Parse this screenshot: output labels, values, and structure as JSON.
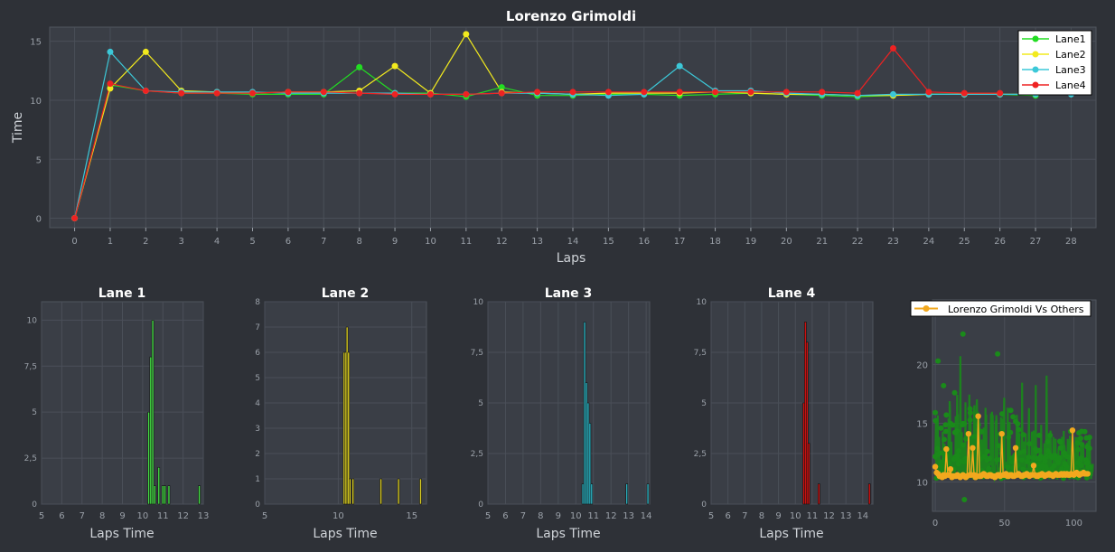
{
  "theme": {
    "background": "#2e3137",
    "plot_background": "#3a3e46",
    "grid": "#4a4f58",
    "axis_text": "#9aa0a8",
    "title_text": "#ffffff",
    "label_text": "#cfd3d8"
  },
  "chart_data": [
    {
      "id": "main",
      "type": "line",
      "title": "Lorenzo Grimoldi",
      "xlabel": "Laps",
      "ylabel": "Time",
      "xlim": [
        -0.7,
        28.7
      ],
      "ylim": [
        -0.8,
        16.2
      ],
      "xticks": [
        0,
        1,
        2,
        3,
        4,
        5,
        6,
        7,
        8,
        9,
        10,
        11,
        12,
        13,
        14,
        15,
        16,
        17,
        18,
        19,
        20,
        21,
        22,
        23,
        24,
        25,
        26,
        27,
        28
      ],
      "yticks": [
        0,
        5,
        10,
        15
      ],
      "grid": true,
      "legend_position": "top-right",
      "x": [
        0,
        1,
        2,
        3,
        4,
        5,
        6,
        7,
        8,
        9,
        10,
        11,
        12,
        13,
        14,
        15,
        16,
        17,
        18,
        19,
        20,
        21,
        22,
        23,
        24,
        25,
        26,
        27,
        28
      ],
      "series": [
        {
          "name": "Lane1",
          "color": "#22dd22",
          "values": [
            0,
            11.3,
            10.8,
            10.6,
            10.6,
            10.5,
            10.5,
            10.5,
            12.8,
            10.6,
            10.6,
            10.3,
            11.1,
            10.4,
            10.4,
            10.5,
            10.5,
            10.4,
            10.5,
            10.6,
            10.5,
            10.4,
            10.3,
            10.4,
            10.5,
            10.5,
            10.5,
            10.4,
            null
          ]
        },
        {
          "name": "Lane2",
          "color": "#f2ea1e",
          "values": [
            0,
            11.0,
            14.1,
            10.8,
            10.7,
            10.6,
            10.7,
            10.7,
            10.8,
            12.9,
            10.6,
            15.6,
            10.7,
            10.6,
            10.5,
            10.6,
            10.6,
            10.6,
            10.7,
            10.6,
            10.5,
            10.5,
            10.4,
            10.4,
            10.5,
            10.5,
            10.5,
            10.5,
            null
          ]
        },
        {
          "name": "Lane3",
          "color": "#3cc8d8",
          "values": [
            0,
            14.1,
            10.8,
            10.7,
            10.7,
            10.7,
            10.6,
            10.6,
            10.6,
            10.6,
            10.5,
            10.5,
            10.6,
            10.6,
            10.5,
            10.4,
            10.5,
            12.9,
            10.8,
            10.8,
            10.6,
            10.5,
            10.4,
            10.5,
            10.5,
            10.5,
            10.5,
            10.5,
            10.5
          ]
        },
        {
          "name": "Lane4",
          "color": "#ee2222",
          "values": [
            0,
            11.4,
            10.8,
            10.6,
            10.6,
            10.6,
            10.7,
            10.7,
            10.6,
            10.5,
            10.5,
            10.5,
            10.6,
            10.7,
            10.7,
            10.7,
            10.7,
            10.7,
            10.7,
            10.7,
            10.7,
            10.7,
            10.6,
            14.4,
            10.7,
            10.6,
            10.6,
            null,
            null
          ]
        }
      ]
    },
    {
      "id": "lane1",
      "type": "bar",
      "title": "Lane 1",
      "xlabel": "Laps Time",
      "color": "#44dd44",
      "xlim": [
        5,
        13
      ],
      "ylim": [
        0,
        11
      ],
      "xticks": [
        5,
        6,
        7,
        8,
        9,
        10,
        11,
        12,
        13
      ],
      "yticks": [
        0,
        2.5,
        5,
        7.5,
        10
      ],
      "ytick_labels": [
        "0",
        "2,5",
        "5",
        "7,5",
        "10"
      ],
      "bars": [
        {
          "x": 10.3,
          "count": 5
        },
        {
          "x": 10.4,
          "count": 8
        },
        {
          "x": 10.5,
          "count": 10
        },
        {
          "x": 10.6,
          "count": 1
        },
        {
          "x": 10.8,
          "count": 2
        },
        {
          "x": 11.0,
          "count": 1
        },
        {
          "x": 11.1,
          "count": 1
        },
        {
          "x": 11.3,
          "count": 1
        },
        {
          "x": 12.8,
          "count": 1
        }
      ]
    },
    {
      "id": "lane2",
      "type": "bar",
      "title": "Lane 2",
      "xlabel": "Laps Time",
      "color": "#d8cc22",
      "xlim": [
        5,
        16
      ],
      "ylim": [
        0,
        8
      ],
      "xticks": [
        5,
        10,
        15
      ],
      "yticks": [
        0,
        1,
        2,
        3,
        4,
        5,
        6,
        7,
        8
      ],
      "ytick_labels": [
        "0",
        "1",
        "2",
        "3",
        "4",
        "5",
        "6",
        "7",
        "8"
      ],
      "bars": [
        {
          "x": 10.4,
          "count": 6
        },
        {
          "x": 10.5,
          "count": 6
        },
        {
          "x": 10.6,
          "count": 7
        },
        {
          "x": 10.7,
          "count": 6
        },
        {
          "x": 10.8,
          "count": 1
        },
        {
          "x": 11.0,
          "count": 1
        },
        {
          "x": 12.9,
          "count": 1
        },
        {
          "x": 14.1,
          "count": 1
        },
        {
          "x": 15.6,
          "count": 1
        }
      ]
    },
    {
      "id": "lane3",
      "type": "bar",
      "title": "Lane 3",
      "xlabel": "Laps Time",
      "color": "#2ab0c0",
      "xlim": [
        5,
        14.2
      ],
      "ylim": [
        0,
        10
      ],
      "xticks": [
        5,
        6,
        7,
        8,
        9,
        10,
        11,
        12,
        13,
        14
      ],
      "yticks": [
        0,
        2.5,
        5,
        7.5,
        10
      ],
      "ytick_labels": [
        "0",
        "2,5",
        "5",
        "7,5",
        "10"
      ],
      "bars": [
        {
          "x": 10.4,
          "count": 1
        },
        {
          "x": 10.5,
          "count": 9
        },
        {
          "x": 10.6,
          "count": 6
        },
        {
          "x": 10.7,
          "count": 5
        },
        {
          "x": 10.8,
          "count": 4
        },
        {
          "x": 10.9,
          "count": 1
        },
        {
          "x": 12.9,
          "count": 1
        },
        {
          "x": 14.1,
          "count": 1
        }
      ]
    },
    {
      "id": "lane4",
      "type": "bar",
      "title": "Lane 4",
      "xlabel": "Laps Time",
      "color": "#cc1111",
      "xlim": [
        5,
        14.6
      ],
      "ylim": [
        0,
        10
      ],
      "xticks": [
        5,
        6,
        7,
        8,
        9,
        10,
        11,
        12,
        13,
        14
      ],
      "yticks": [
        0,
        2.5,
        5,
        7.5,
        10
      ],
      "ytick_labels": [
        "0",
        "2,5",
        "5",
        "7,5",
        "10"
      ],
      "bars": [
        {
          "x": 10.5,
          "count": 5
        },
        {
          "x": 10.6,
          "count": 9
        },
        {
          "x": 10.7,
          "count": 8
        },
        {
          "x": 10.8,
          "count": 3
        },
        {
          "x": 11.4,
          "count": 1
        },
        {
          "x": 14.4,
          "count": 1
        }
      ]
    },
    {
      "id": "compare",
      "type": "scatter",
      "title": "",
      "legend": "Lorenzo Grimoldi Vs Others",
      "legend_position": "top-left",
      "main_color": "#f2a81e",
      "others_color": "#1a8a1a",
      "xlim": [
        -2,
        116
      ],
      "ylim": [
        7.5,
        25.5
      ],
      "xticks": [
        0,
        50,
        100
      ],
      "yticks": [
        10,
        15,
        20
      ],
      "main_points": [
        [
          0,
          11.3
        ],
        [
          1,
          10.8
        ],
        [
          2,
          10.7
        ],
        [
          3,
          10.5
        ],
        [
          4,
          10.5
        ],
        [
          5,
          10.4
        ],
        [
          6,
          10.6
        ],
        [
          7,
          10.5
        ],
        [
          8,
          10.5
        ],
        [
          9,
          10.6
        ],
        [
          10,
          10.6
        ],
        [
          11,
          10.5
        ],
        [
          12,
          10.4
        ],
        [
          13,
          10.5
        ],
        [
          14,
          10.5
        ],
        [
          15,
          10.5
        ],
        [
          16,
          10.6
        ],
        [
          17,
          10.5
        ],
        [
          18,
          10.4
        ],
        [
          19,
          10.5
        ],
        [
          20,
          10.6
        ],
        [
          21,
          10.5
        ],
        [
          22,
          10.4
        ],
        [
          23,
          10.5
        ],
        [
          24,
          10.5
        ],
        [
          25,
          10.6
        ],
        [
          26,
          10.6
        ],
        [
          27,
          10.5
        ],
        [
          28,
          10.6
        ],
        [
          29,
          10.4
        ],
        [
          30,
          10.5
        ],
        [
          31,
          10.6
        ],
        [
          32,
          10.5
        ],
        [
          33,
          10.5
        ],
        [
          34,
          10.6
        ],
        [
          35,
          10.7
        ],
        [
          36,
          10.6
        ],
        [
          37,
          10.5
        ],
        [
          38,
          10.5
        ],
        [
          39,
          10.6
        ],
        [
          40,
          10.6
        ],
        [
          41,
          10.5
        ],
        [
          42,
          10.5
        ],
        [
          43,
          10.4
        ],
        [
          44,
          10.5
        ],
        [
          45,
          10.6
        ],
        [
          46,
          10.6
        ],
        [
          47,
          10.5
        ],
        [
          48,
          10.5
        ],
        [
          49,
          10.6
        ],
        [
          50,
          10.6
        ],
        [
          51,
          10.7
        ],
        [
          52,
          10.5
        ],
        [
          53,
          10.5
        ],
        [
          54,
          10.6
        ],
        [
          55,
          10.6
        ],
        [
          56,
          10.5
        ],
        [
          57,
          10.5
        ],
        [
          58,
          10.6
        ],
        [
          59,
          10.6
        ],
        [
          60,
          10.7
        ],
        [
          61,
          10.6
        ],
        [
          62,
          10.5
        ],
        [
          63,
          10.5
        ],
        [
          64,
          10.6
        ],
        [
          65,
          10.6
        ],
        [
          66,
          10.7
        ],
        [
          67,
          10.6
        ],
        [
          68,
          10.5
        ],
        [
          69,
          10.6
        ],
        [
          70,
          10.6
        ],
        [
          71,
          10.7
        ],
        [
          72,
          10.6
        ],
        [
          73,
          10.5
        ],
        [
          74,
          10.5
        ],
        [
          75,
          10.6
        ],
        [
          76,
          10.6
        ],
        [
          77,
          10.7
        ],
        [
          78,
          10.6
        ],
        [
          79,
          10.5
        ],
        [
          80,
          10.6
        ],
        [
          81,
          10.6
        ],
        [
          82,
          10.7
        ],
        [
          83,
          10.6
        ],
        [
          84,
          10.6
        ],
        [
          85,
          10.5
        ],
        [
          86,
          10.6
        ],
        [
          87,
          10.7
        ],
        [
          88,
          10.6
        ],
        [
          89,
          10.6
        ],
        [
          90,
          10.6
        ],
        [
          91,
          10.7
        ],
        [
          92,
          10.6
        ],
        [
          93,
          10.7
        ],
        [
          94,
          10.6
        ],
        [
          95,
          10.7
        ],
        [
          96,
          10.6
        ],
        [
          97,
          10.6
        ],
        [
          98,
          10.7
        ],
        [
          99,
          10.7
        ],
        [
          100,
          10.6
        ],
        [
          101,
          10.7
        ],
        [
          102,
          10.8
        ],
        [
          103,
          10.7
        ],
        [
          104,
          10.6
        ],
        [
          105,
          10.7
        ],
        [
          106,
          10.7
        ],
        [
          107,
          10.8
        ],
        [
          108,
          10.7
        ],
        [
          109,
          10.7
        ],
        [
          110,
          10.7
        ]
      ],
      "main_spikes": [
        [
          8,
          12.8
        ],
        [
          11,
          11.1
        ],
        [
          24,
          14.1
        ],
        [
          27,
          12.9
        ],
        [
          31,
          15.6
        ],
        [
          48,
          14.1
        ],
        [
          58,
          12.9
        ],
        [
          71,
          11.4
        ],
        [
          99,
          14.4
        ]
      ]
    }
  ]
}
